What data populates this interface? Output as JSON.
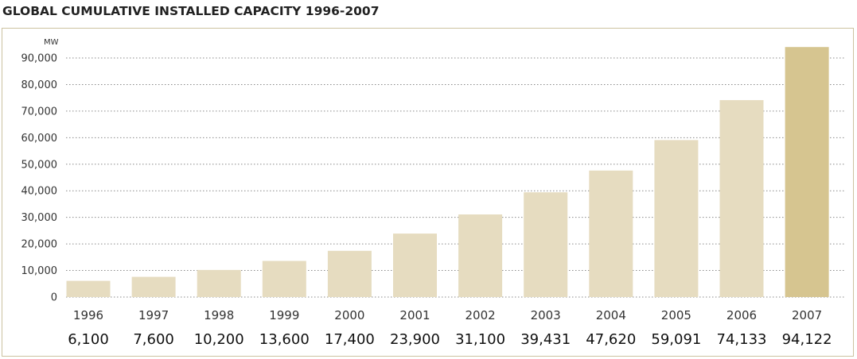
{
  "chart_data": {
    "type": "bar",
    "title": "GLOBAL CUMULATIVE INSTALLED CAPACITY 1996-2007",
    "ylabel": "MW",
    "xlabel": "",
    "categories": [
      "1996",
      "1997",
      "1998",
      "1999",
      "2000",
      "2001",
      "2002",
      "2003",
      "2004",
      "2005",
      "2006",
      "2007"
    ],
    "values": [
      6100,
      7600,
      10200,
      13600,
      17400,
      23900,
      31100,
      39431,
      47620,
      59091,
      74133,
      94122
    ],
    "value_labels": [
      "6,100",
      "7,600",
      "10,200",
      "13,600",
      "17,400",
      "23,900",
      "31,100",
      "39,431",
      "47,620",
      "59,091",
      "74,133",
      "94,122"
    ],
    "yticks": [
      0,
      10000,
      20000,
      30000,
      40000,
      50000,
      60000,
      70000,
      80000,
      90000
    ],
    "ytick_labels": [
      "0",
      "10,000",
      "20,000",
      "30,000",
      "40,000",
      "50,000",
      "60,000",
      "70,000",
      "80,000",
      "90,000"
    ],
    "ylim": [
      0,
      95000
    ],
    "grid": "dotted horizontal",
    "colors": {
      "bar": "#e6dcc0",
      "highlight_bar": "#d6c590",
      "grid": "#8a8a8a",
      "frame": "#ccc2a0"
    }
  }
}
